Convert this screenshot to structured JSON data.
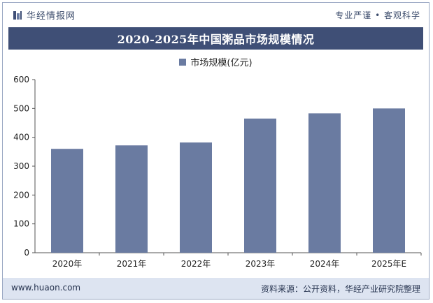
{
  "header": {
    "brand": "华经情报网",
    "tagline": "专业严谨 • 客观科学"
  },
  "colors": {
    "bar": "#6a7ba1",
    "title_bg": "#3f4f76",
    "footer_bg": "#dde4f1"
  },
  "chart_data": {
    "type": "bar",
    "title": "2020-2025年中国粥品市场规模情况",
    "categories": [
      "2020年",
      "2021年",
      "2022年",
      "2023年",
      "2024年",
      "2025年E"
    ],
    "series": [
      {
        "name": "市场规模(亿元)",
        "values": [
          360,
          372,
          382,
          465,
          483,
          500
        ]
      }
    ],
    "ylim": [
      0,
      600
    ],
    "yticks": [
      "0",
      "100",
      "200",
      "300",
      "400",
      "500",
      "600"
    ],
    "legend_position": "top-center",
    "grid": false
  },
  "footer": {
    "url": "www.huaon.com",
    "source": "资料来源：公开资料，华经产业研究院整理"
  }
}
